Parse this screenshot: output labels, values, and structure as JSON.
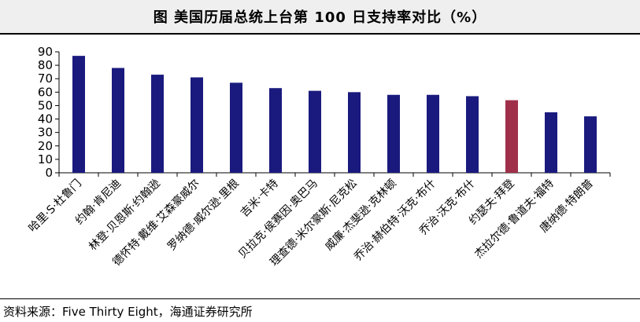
{
  "title": "图  美国历届总统上台第 100 日支持率对比（%）",
  "source": "资料来源：Five Thirty Eight，海通证券研究所",
  "colors": {
    "bar": "#1a1a7e",
    "highlight_bar": "#a0304a",
    "axis": "#000000"
  },
  "chart_data": {
    "type": "bar",
    "categories": [
      "哈里·S·杜鲁门",
      "约翰·肯尼迪",
      "林登·贝恩斯·约翰逊",
      "德怀特·戴维·艾森豪威尔",
      "罗纳德·威尔逊·里根",
      "吉米·卡特",
      "贝拉克·侯赛因·奥巴马",
      "理查德·米尔豪斯·尼克松",
      "威廉·杰斐逊·克林顿",
      "乔治·赫伯特·沃克·布什",
      "乔治·沃克·布什",
      "约瑟夫·拜登",
      "杰拉尔德·鲁道夫·福特",
      "唐纳德·特朗普"
    ],
    "values": [
      87,
      78,
      73,
      71,
      67,
      63,
      61,
      60,
      58,
      58,
      57,
      54,
      45,
      42
    ],
    "highlight_index": 11,
    "ylim": [
      0,
      90
    ],
    "yticks": [
      0,
      10,
      20,
      30,
      40,
      50,
      60,
      70,
      80,
      90
    ],
    "grid": false,
    "legend": "none"
  }
}
